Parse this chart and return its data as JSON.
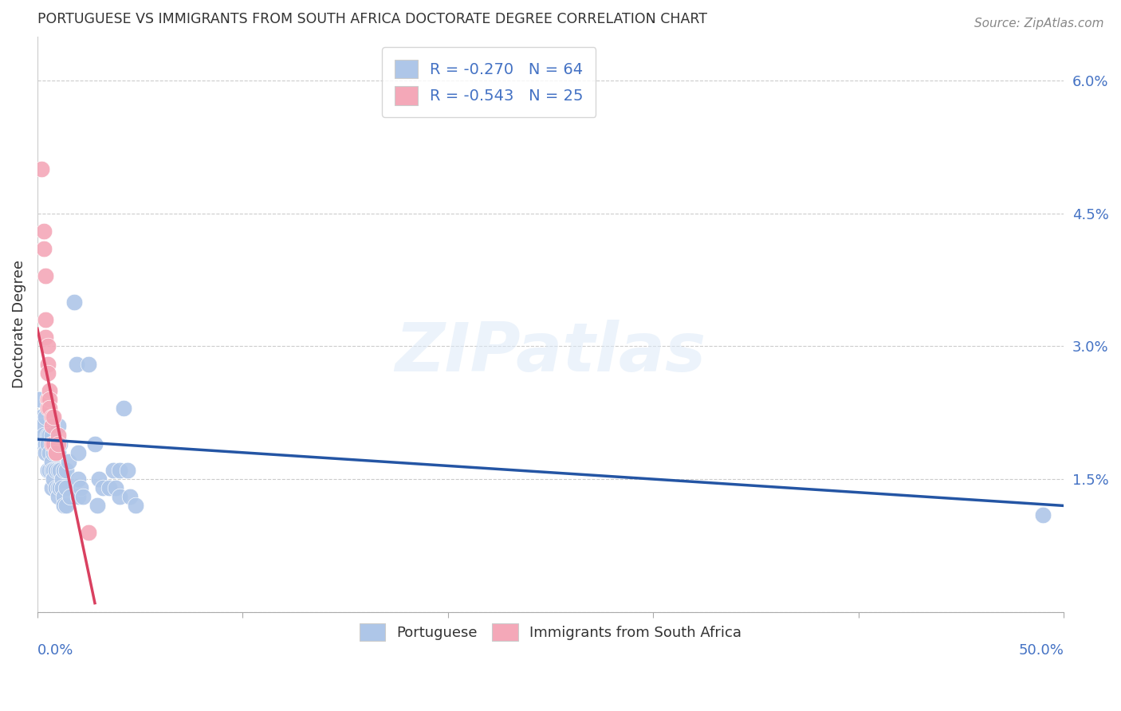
{
  "title": "PORTUGUESE VS IMMIGRANTS FROM SOUTH AFRICA DOCTORATE DEGREE CORRELATION CHART",
  "source": "Source: ZipAtlas.com",
  "ylabel": "Doctorate Degree",
  "right_yticks": [
    0.0,
    1.5,
    3.0,
    4.5,
    6.0
  ],
  "right_yticklabels": [
    "",
    "1.5%",
    "3.0%",
    "4.5%",
    "6.0%"
  ],
  "xmin": 0.0,
  "xmax": 50.0,
  "ymin": 0.0,
  "ymax": 6.5,
  "blue_color": "#aec6e8",
  "pink_color": "#f4a8b8",
  "blue_line_color": "#2455a4",
  "pink_line_color": "#d94060",
  "axis_color": "#4472c4",
  "grid_color": "#cccccc",
  "watermark_text": "ZIPatlas",
  "legend_r1": "R = -0.270   N = 64",
  "legend_r2": "R = -0.543   N = 25",
  "legend_bottom_1": "Portuguese",
  "legend_bottom_2": "Immigrants from South Africa",
  "portuguese_points": [
    [
      0.1,
      2.4
    ],
    [
      0.2,
      2.2
    ],
    [
      0.2,
      2.1
    ],
    [
      0.3,
      2.0
    ],
    [
      0.3,
      1.9
    ],
    [
      0.4,
      2.2
    ],
    [
      0.4,
      1.9
    ],
    [
      0.4,
      1.8
    ],
    [
      0.5,
      2.0
    ],
    [
      0.5,
      1.9
    ],
    [
      0.5,
      1.6
    ],
    [
      0.5,
      1.6
    ],
    [
      0.6,
      2.0
    ],
    [
      0.6,
      1.8
    ],
    [
      0.6,
      1.6
    ],
    [
      0.7,
      2.0
    ],
    [
      0.7,
      1.7
    ],
    [
      0.7,
      1.6
    ],
    [
      0.7,
      1.4
    ],
    [
      0.8,
      1.8
    ],
    [
      0.8,
      1.6
    ],
    [
      0.8,
      1.5
    ],
    [
      0.9,
      1.6
    ],
    [
      0.9,
      1.4
    ],
    [
      1.0,
      2.1
    ],
    [
      1.0,
      1.8
    ],
    [
      1.0,
      1.6
    ],
    [
      1.0,
      1.4
    ],
    [
      1.0,
      1.3
    ],
    [
      1.1,
      1.9
    ],
    [
      1.1,
      1.6
    ],
    [
      1.1,
      1.4
    ],
    [
      1.2,
      1.5
    ],
    [
      1.2,
      1.4
    ],
    [
      1.3,
      1.6
    ],
    [
      1.3,
      1.3
    ],
    [
      1.3,
      1.2
    ],
    [
      1.4,
      1.6
    ],
    [
      1.4,
      1.4
    ],
    [
      1.4,
      1.2
    ],
    [
      1.5,
      1.7
    ],
    [
      1.6,
      1.3
    ],
    [
      1.8,
      3.5
    ],
    [
      1.9,
      2.8
    ],
    [
      2.0,
      1.8
    ],
    [
      2.0,
      1.5
    ],
    [
      2.0,
      1.3
    ],
    [
      2.1,
      1.4
    ],
    [
      2.2,
      1.3
    ],
    [
      2.5,
      2.8
    ],
    [
      2.8,
      1.9
    ],
    [
      2.9,
      1.2
    ],
    [
      3.0,
      1.5
    ],
    [
      3.2,
      1.4
    ],
    [
      3.5,
      1.4
    ],
    [
      3.7,
      1.6
    ],
    [
      3.8,
      1.4
    ],
    [
      4.0,
      1.6
    ],
    [
      4.0,
      1.3
    ],
    [
      4.2,
      2.3
    ],
    [
      4.4,
      1.6
    ],
    [
      4.5,
      1.3
    ],
    [
      4.8,
      1.2
    ],
    [
      49.0,
      1.1
    ]
  ],
  "immigrant_points": [
    [
      0.2,
      5.0
    ],
    [
      0.3,
      4.3
    ],
    [
      0.3,
      4.1
    ],
    [
      0.4,
      3.8
    ],
    [
      0.4,
      3.3
    ],
    [
      0.4,
      3.1
    ],
    [
      0.5,
      3.0
    ],
    [
      0.5,
      2.8
    ],
    [
      0.5,
      2.7
    ],
    [
      0.5,
      2.4
    ],
    [
      0.5,
      2.4
    ],
    [
      0.5,
      2.3
    ],
    [
      0.6,
      2.5
    ],
    [
      0.6,
      2.4
    ],
    [
      0.6,
      2.3
    ],
    [
      0.7,
      2.2
    ],
    [
      0.7,
      2.1
    ],
    [
      0.7,
      1.9
    ],
    [
      0.8,
      2.2
    ],
    [
      0.8,
      1.9
    ],
    [
      0.9,
      1.8
    ],
    [
      0.9,
      1.8
    ],
    [
      1.0,
      2.0
    ],
    [
      1.0,
      1.9
    ],
    [
      2.5,
      0.9
    ]
  ],
  "blue_trendline": {
    "x_start": 0.0,
    "y_start": 1.95,
    "x_end": 50.0,
    "y_end": 1.2
  },
  "pink_trendline": {
    "x_start": 0.0,
    "y_start": 3.2,
    "x_end": 2.8,
    "y_end": 0.1
  }
}
